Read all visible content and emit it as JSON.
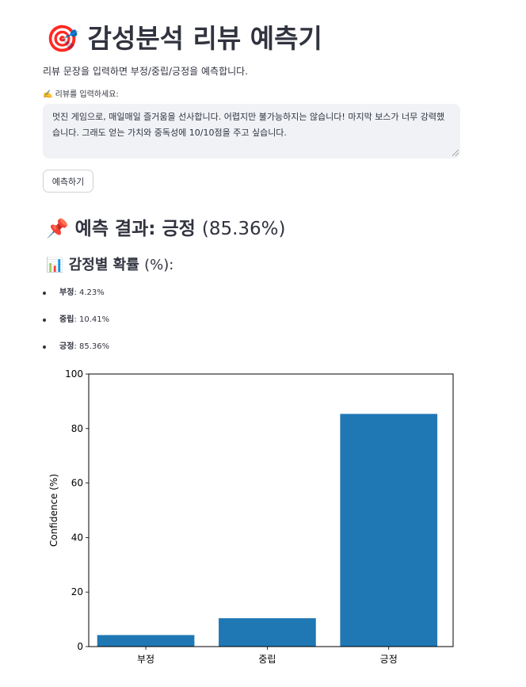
{
  "header": {
    "title_emoji": "🎯",
    "title": "감성분석 리뷰 예측기",
    "subtitle": "리뷰 문장을 입력하면 부정/중립/긍정을 예측합니다."
  },
  "input": {
    "label": "✍️ 리뷰를 입력하세요:",
    "value": "멋진 게임으로, 매일매일 즐거움을 선사합니다. 어렵지만 불가능하지는 않습니다! 마지막 보스가 너무 강력했습니다. 그래도 얻는 가치와 중독성에 10/10점을 주고 싶습니다."
  },
  "predict_button": {
    "label": "예측하기"
  },
  "result": {
    "emoji": "📌",
    "label": "예측 결과: 긍정",
    "percent": "(85.36%)"
  },
  "probabilities": {
    "emoji": "📊",
    "heading": "감정별 확률",
    "unit": "(%):",
    "items": [
      {
        "name": "부정",
        "value": "4.23%"
      },
      {
        "name": "중립",
        "value": "10.41%"
      },
      {
        "name": "긍정",
        "value": "85.36%"
      }
    ]
  },
  "chart_data": {
    "type": "bar",
    "categories": [
      "부정",
      "중립",
      "긍정"
    ],
    "values": [
      4.23,
      10.41,
      85.36
    ],
    "ylabel": "Confidence (%)",
    "xlabel": "",
    "ylim": [
      0,
      100
    ],
    "yticks": [
      0,
      20,
      40,
      60,
      80,
      100
    ],
    "grid": false,
    "bar_color": "#1f77b4"
  }
}
